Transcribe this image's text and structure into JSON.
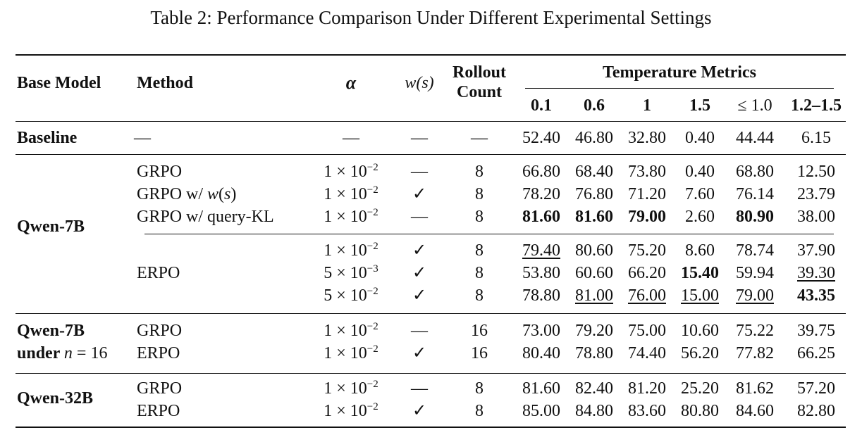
{
  "caption": "Table 2: Performance Comparison Under Different Experimental Settings",
  "headers": {
    "base_model": "Base Model",
    "method": "Method",
    "alpha": "α",
    "ws": "w(s)",
    "rollout_line1": "Rollout",
    "rollout_line2": "Count",
    "temp_group": "Temperature Metrics",
    "temps": [
      "0.1",
      "0.6",
      "1",
      "1.5",
      "≤ 1.0",
      "1.2–1.5"
    ]
  },
  "groups": [
    {
      "label": [
        "Baseline"
      ],
      "rows": [
        {
          "method": "—",
          "alpha": "—",
          "ws": "—",
          "rollout": "—",
          "values": [
            "52.40",
            "46.80",
            "32.80",
            "0.40",
            "44.44",
            "6.15"
          ]
        }
      ]
    },
    {
      "label": [
        "Qwen-7B"
      ],
      "rows": [
        {
          "method": "GRPO",
          "alpha_base": "1 × 10",
          "alpha_exp": "−2",
          "ws": "—",
          "rollout": "8",
          "values": [
            "66.80",
            "68.40",
            "73.80",
            "0.40",
            "68.80",
            "12.50"
          ]
        },
        {
          "method": "GRPO w/ w(s)",
          "alpha_base": "1 × 10",
          "alpha_exp": "−2",
          "ws": "✓",
          "rollout": "8",
          "values": [
            "78.20",
            "76.80",
            "71.20",
            "7.60",
            "76.14",
            "23.79"
          ]
        },
        {
          "method": "GRPO w/ query-KL",
          "alpha_base": "1 × 10",
          "alpha_exp": "−2",
          "ws": "—",
          "rollout": "8",
          "values": [
            "81.60",
            "81.60",
            "79.00",
            "2.60",
            "80.90",
            "38.00"
          ]
        },
        {
          "method": "",
          "alpha_base": "1 × 10",
          "alpha_exp": "−2",
          "ws": "✓",
          "rollout": "8",
          "values": [
            "79.40",
            "80.60",
            "75.20",
            "8.60",
            "78.74",
            "37.90"
          ]
        },
        {
          "method": "ERPO",
          "alpha_base": "5 × 10",
          "alpha_exp": "−3",
          "ws": "✓",
          "rollout": "8",
          "values": [
            "53.80",
            "60.60",
            "66.20",
            "15.40",
            "59.94",
            "39.30"
          ]
        },
        {
          "method": "",
          "alpha_base": "5 × 10",
          "alpha_exp": "−2",
          "ws": "✓",
          "rollout": "8",
          "values": [
            "78.80",
            "81.00",
            "76.00",
            "15.00",
            "79.00",
            "43.35"
          ]
        }
      ]
    },
    {
      "label": [
        "Qwen-7B",
        "under n = 16"
      ],
      "rows": [
        {
          "method": "GRPO",
          "alpha_base": "1 × 10",
          "alpha_exp": "−2",
          "ws": "—",
          "rollout": "16",
          "values": [
            "73.00",
            "79.20",
            "75.00",
            "10.60",
            "75.22",
            "39.75"
          ]
        },
        {
          "method": "ERPO",
          "alpha_base": "1 × 10",
          "alpha_exp": "−2",
          "ws": "✓",
          "rollout": "16",
          "values": [
            "80.40",
            "78.80",
            "74.40",
            "56.20",
            "77.82",
            "66.25"
          ]
        }
      ]
    },
    {
      "label": [
        "Qwen-32B"
      ],
      "rows": [
        {
          "method": "GRPO",
          "alpha_base": "1 × 10",
          "alpha_exp": "−2",
          "ws": "—",
          "rollout": "8",
          "values": [
            "81.60",
            "82.40",
            "81.20",
            "25.20",
            "81.62",
            "57.20"
          ]
        },
        {
          "method": "ERPO",
          "alpha_base": "1 × 10",
          "alpha_exp": "−2",
          "ws": "✓",
          "rollout": "8",
          "values": [
            "85.00",
            "84.80",
            "83.60",
            "80.80",
            "84.60",
            "82.80"
          ]
        }
      ]
    }
  ],
  "bold_cells": [
    [
      1,
      2,
      0
    ],
    [
      1,
      2,
      1
    ],
    [
      1,
      2,
      2
    ],
    [
      1,
      2,
      4
    ],
    [
      1,
      4,
      3
    ],
    [
      1,
      5,
      5
    ]
  ],
  "underline_cells": [
    [
      1,
      3,
      0
    ],
    [
      1,
      4,
      5
    ],
    [
      1,
      5,
      1
    ],
    [
      1,
      5,
      2
    ],
    [
      1,
      5,
      3
    ],
    [
      1,
      5,
      4
    ]
  ]
}
